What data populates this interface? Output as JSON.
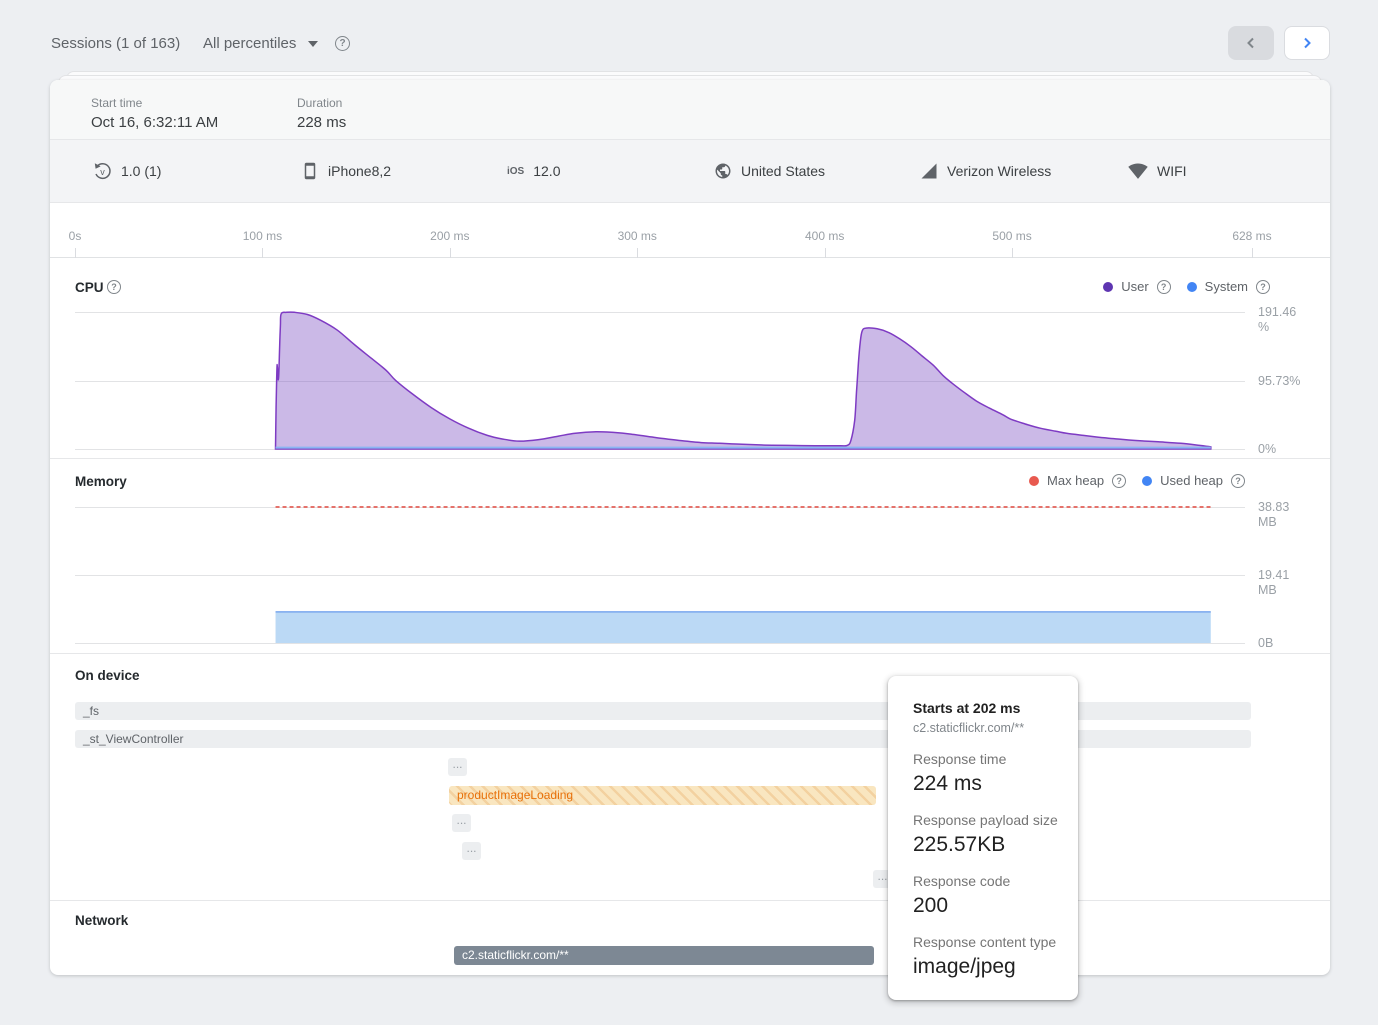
{
  "topbar": {
    "sessions_label": "Sessions (1 of 163)",
    "percentiles_label": "All percentiles",
    "help": "?"
  },
  "header": {
    "start_time_label": "Start time",
    "start_time_value": "Oct 16, 6:32:11 AM",
    "duration_label": "Duration",
    "duration_value": "228 ms"
  },
  "device": {
    "items": [
      {
        "icon": "app-version-icon",
        "label": "1.0 (1)"
      },
      {
        "icon": "device-icon",
        "label": "iPhone8,2"
      },
      {
        "icon": "os-icon",
        "label": "12.0"
      },
      {
        "icon": "country-icon",
        "label": "United States"
      },
      {
        "icon": "carrier-icon",
        "label": "Verizon Wireless"
      },
      {
        "icon": "radio-icon",
        "label": "WIFI"
      }
    ]
  },
  "timeline": {
    "ticks": [
      {
        "label": "0s",
        "ms": 0
      },
      {
        "label": "100 ms",
        "ms": 100
      },
      {
        "label": "200 ms",
        "ms": 200
      },
      {
        "label": "300 ms",
        "ms": 300
      },
      {
        "label": "400 ms",
        "ms": 400
      },
      {
        "label": "500 ms",
        "ms": 500
      },
      {
        "label": "628 ms",
        "ms": 628
      }
    ],
    "duration_ms": 628
  },
  "chart_data": [
    {
      "type": "area",
      "name": "cpu",
      "title": "CPU",
      "legend": [
        {
          "name": "User",
          "color": "#5e35b1"
        },
        {
          "name": "System",
          "color": "#4285f4"
        }
      ],
      "ylim": [
        0,
        191.46
      ],
      "ytick_labels": [
        "191.46 %",
        "95.73%",
        "0%"
      ],
      "yticks": [
        191.46,
        95.73,
        0
      ],
      "x_range_ms": [
        107,
        606
      ],
      "series": [
        {
          "name": "User",
          "points": [
            [
              107,
              0
            ],
            [
              107.3,
              60
            ],
            [
              107.6,
              100
            ],
            [
              107.9,
              118
            ],
            [
              108.3,
              99
            ],
            [
              108.7,
              102
            ],
            [
              109.2,
              145
            ],
            [
              109.6,
              172
            ],
            [
              110,
              189
            ],
            [
              113,
              191
            ],
            [
              117,
              191
            ],
            [
              124,
              188
            ],
            [
              131,
              180
            ],
            [
              140,
              166
            ],
            [
              149,
              146
            ],
            [
              158,
              127
            ],
            [
              166,
              110
            ],
            [
              171,
              96
            ],
            [
              180,
              77
            ],
            [
              190,
              58
            ],
            [
              200,
              42
            ],
            [
              210,
              29
            ],
            [
              220,
              19
            ],
            [
              228,
              14
            ],
            [
              237,
              11
            ],
            [
              247,
              13
            ],
            [
              258,
              18
            ],
            [
              267,
              22
            ],
            [
              278,
              24
            ],
            [
              288,
              23
            ],
            [
              296,
              21
            ],
            [
              310,
              16
            ],
            [
              322,
              12
            ],
            [
              334,
              9
            ],
            [
              344,
              8
            ],
            [
              356,
              6.5
            ],
            [
              368,
              5.5
            ],
            [
              380,
              5
            ],
            [
              395,
              4.5
            ],
            [
              408,
              4.5
            ],
            [
              412,
              5
            ],
            [
              414,
              12
            ],
            [
              416,
              40
            ],
            [
              417,
              80
            ],
            [
              418,
              120
            ],
            [
              419,
              150
            ],
            [
              420,
              165
            ],
            [
              422,
              169
            ],
            [
              428,
              168
            ],
            [
              434,
              163
            ],
            [
              440,
              154
            ],
            [
              446,
              143
            ],
            [
              452,
              130
            ],
            [
              458,
              117
            ],
            [
              463,
              103
            ],
            [
              468,
              92
            ],
            [
              474,
              80
            ],
            [
              481,
              67
            ],
            [
              488,
              57
            ],
            [
              495,
              48
            ],
            [
              499,
              42
            ],
            [
              507,
              35
            ],
            [
              515,
              29
            ],
            [
              523,
              25
            ],
            [
              529,
              22
            ],
            [
              538,
              19
            ],
            [
              548,
              16
            ],
            [
              558,
              13.5
            ],
            [
              565,
              12
            ],
            [
              578,
              10
            ],
            [
              590,
              8
            ],
            [
              600,
              5
            ],
            [
              606,
              3
            ]
          ]
        },
        {
          "name": "System",
          "points": [
            [
              107,
              2
            ],
            [
              606,
              2
            ]
          ]
        }
      ]
    },
    {
      "type": "line",
      "name": "memory",
      "title": "Memory",
      "legend": [
        {
          "name": "Max heap",
          "color": "#e8594f"
        },
        {
          "name": "Used heap",
          "color": "#4285f4"
        }
      ],
      "ylim": [
        0,
        38.83
      ],
      "ytick_labels": [
        "38.83 MB",
        "19.41 MB",
        "0B"
      ],
      "yticks": [
        38.83,
        19.41,
        0
      ],
      "x_range_ms": [
        107,
        606
      ],
      "series": [
        {
          "name": "Max heap",
          "style": "dashed",
          "value_mb": 38.83
        },
        {
          "name": "Used heap",
          "style": "area",
          "value_mb": 8.9
        }
      ]
    }
  ],
  "on_device": {
    "title": "On device",
    "spans": [
      {
        "label": "_fs",
        "start_ms": 0,
        "end_ms": 627.5,
        "row": 0,
        "style": "default"
      },
      {
        "label": "_st_ViewController",
        "start_ms": 0,
        "end_ms": 627.5,
        "row": 1,
        "style": "default"
      },
      {
        "label": "...",
        "start_ms": 199,
        "end_ms": 209.2,
        "row": 2,
        "style": "dots"
      },
      {
        "label": "productImageLoading",
        "start_ms": 199.5,
        "end_ms": 427.5,
        "row": 3,
        "style": "hatched"
      },
      {
        "label": "...",
        "start_ms": 201.2,
        "end_ms": 211.3,
        "row": 4,
        "style": "dots"
      },
      {
        "label": "...",
        "start_ms": 206.5,
        "end_ms": 216.7,
        "row": 5,
        "style": "dots"
      },
      {
        "label": "...",
        "start_ms": 426,
        "end_ms": 436,
        "row": 6,
        "style": "dots"
      }
    ]
  },
  "network": {
    "title": "Network",
    "spans": [
      {
        "label": "c2.staticflickr.com/**",
        "start_ms": 202,
        "end_ms": 426,
        "row": 0,
        "style": "network"
      }
    ]
  },
  "tooltip": {
    "title": "Starts at 202 ms",
    "url": "c2.staticflickr.com/**",
    "fields": [
      {
        "label": "Response time",
        "value": "224 ms"
      },
      {
        "label": "Response payload size",
        "value": "225.57KB"
      },
      {
        "label": "Response code",
        "value": "200"
      },
      {
        "label": "Response content type",
        "value": "image/jpeg"
      }
    ]
  },
  "colors": {
    "cpu_user_stroke": "#7e3bc3",
    "cpu_user_fill": "rgba(126,80,196,0.40)",
    "cpu_system": "#8ab5f2",
    "max_heap_line": "#e5726b",
    "used_heap_fill": "#bbd9f5",
    "used_heap_stroke": "#79a7ee",
    "accent_blue": "#4285f4"
  }
}
